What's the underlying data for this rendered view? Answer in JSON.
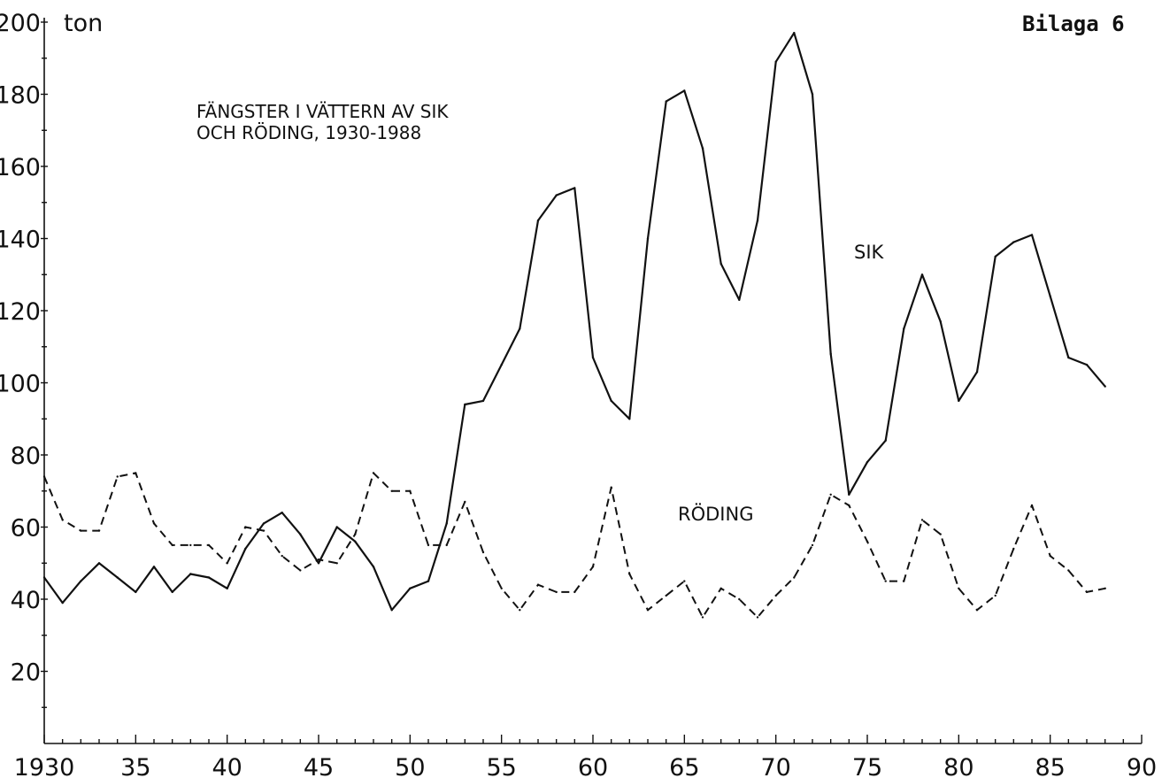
{
  "chart_data": {
    "type": "line",
    "corner_label": "Bilaga 6",
    "title_lines": [
      "FÄNGSTER I VÄTTERN AV SIK",
      "OCH RÖDING, 1930-1988"
    ],
    "y_unit": "ton",
    "ylim": [
      0,
      200
    ],
    "xlim": [
      1930,
      1990
    ],
    "y_ticks": [
      20,
      40,
      60,
      80,
      100,
      120,
      140,
      160,
      180,
      200
    ],
    "y_tick_labels": [
      "20",
      "40",
      "60",
      "80",
      "100",
      "120",
      "140",
      "160",
      "180",
      "200"
    ],
    "x_ticks": [
      1930,
      1935,
      1940,
      1945,
      1950,
      1955,
      1960,
      1965,
      1970,
      1975,
      1980,
      1985,
      1990
    ],
    "x_tick_labels": [
      "1930",
      "35",
      "40",
      "45",
      "50",
      "55",
      "60",
      "65",
      "70",
      "75",
      "80",
      "85",
      "90"
    ],
    "grid": false,
    "series": [
      {
        "name": "SIK",
        "style": "solid",
        "x": [
          1930,
          1931,
          1932,
          1933,
          1934,
          1935,
          1936,
          1937,
          1938,
          1939,
          1940,
          1941,
          1942,
          1943,
          1944,
          1945,
          1946,
          1947,
          1948,
          1949,
          1950,
          1951,
          1952,
          1953,
          1954,
          1955,
          1956,
          1957,
          1958,
          1959,
          1960,
          1961,
          1962,
          1963,
          1964,
          1965,
          1966,
          1967,
          1968,
          1969,
          1970,
          1971,
          1972,
          1973,
          1974,
          1975,
          1976,
          1977,
          1978,
          1979,
          1980,
          1981,
          1982,
          1983,
          1984,
          1985,
          1986,
          1987,
          1988
        ],
        "values": [
          46,
          39,
          45,
          50,
          46,
          42,
          49,
          42,
          47,
          46,
          43,
          54,
          61,
          64,
          58,
          50,
          60,
          56,
          49,
          37,
          43,
          45,
          61,
          94,
          95,
          105,
          115,
          145,
          152,
          154,
          107,
          95,
          90,
          140,
          178,
          181,
          165,
          133,
          123,
          145,
          189,
          197,
          180,
          108,
          69,
          78,
          84,
          115,
          130,
          117,
          95,
          103,
          135,
          139,
          141,
          124,
          107,
          105,
          99
        ]
      },
      {
        "name": "RÖDING",
        "style": "dashed",
        "x": [
          1930,
          1931,
          1932,
          1933,
          1934,
          1935,
          1936,
          1937,
          1938,
          1939,
          1940,
          1941,
          1942,
          1943,
          1944,
          1945,
          1946,
          1947,
          1948,
          1949,
          1950,
          1951,
          1952,
          1953,
          1954,
          1955,
          1956,
          1957,
          1958,
          1959,
          1960,
          1961,
          1962,
          1963,
          1964,
          1965,
          1966,
          1967,
          1968,
          1969,
          1970,
          1971,
          1972,
          1973,
          1974,
          1975,
          1976,
          1977,
          1978,
          1979,
          1980,
          1981,
          1982,
          1983,
          1984,
          1985,
          1986,
          1987,
          1988
        ],
        "values": [
          74,
          62,
          59,
          59,
          74,
          75,
          61,
          55,
          55,
          55,
          50,
          60,
          59,
          52,
          48,
          51,
          50,
          58,
          75,
          70,
          70,
          55,
          55,
          67,
          53,
          43,
          37,
          44,
          42,
          42,
          49,
          71,
          47,
          37,
          41,
          45,
          35,
          43,
          40,
          35,
          41,
          46,
          55,
          69,
          66,
          56,
          45,
          45,
          62,
          58,
          43,
          37,
          41,
          54,
          66,
          52,
          48,
          42,
          43
        ]
      }
    ]
  }
}
